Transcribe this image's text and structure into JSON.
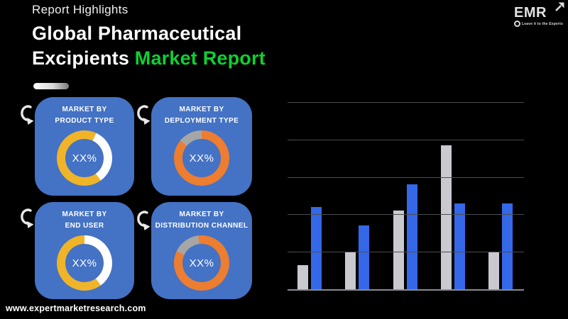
{
  "page": {
    "background": "#000000",
    "accent_green": "#0DD133",
    "card_blue": "#4472C4"
  },
  "header": {
    "eyebrow": "Report Highlights",
    "title_line1": "Global Pharmaceutical",
    "title_line2_white": "Excipients",
    "title_line2_green": "Market Report"
  },
  "logo": {
    "name": "EMR",
    "tagline": "Leave it to the Experts"
  },
  "cards": [
    {
      "line1": "MARKET BY",
      "line2": "PRODUCT TYPE",
      "center_label": "XX%"
    },
    {
      "line1": "MARKET BY",
      "line2": "DEPLOYMENT TYPE",
      "center_label": "XX%"
    },
    {
      "line1": "MARKET BY",
      "line2": "END USER",
      "center_label": "XX%"
    },
    {
      "line1": "MARKET BY",
      "line2": "DISTRIBUTION CHANNEL",
      "center_label": "XX%"
    }
  ],
  "chart_data": [
    {
      "type": "bar",
      "title": "",
      "xlabel": "",
      "ylabel": "",
      "categories": [
        "",
        "",
        "",
        "",
        ""
      ],
      "series": [
        {
          "name": "gray",
          "color": "#C9CACF",
          "values": [
            0.65,
            1.0,
            2.1,
            3.85,
            1.0
          ]
        },
        {
          "name": "blue",
          "color": "#3468E8",
          "values": [
            2.2,
            1.7,
            2.8,
            2.3,
            2.3
          ]
        }
      ],
      "ylim": [
        0,
        5
      ],
      "gridlines": 6,
      "axis_labels_visible": false,
      "legend": "none"
    },
    {
      "type": "donut",
      "title": "MARKET BY PRODUCT TYPE",
      "center_label": "XX%",
      "segments": [
        {
          "color": "#F0B429",
          "pct": 7
        },
        {
          "color": "#FFFFFF",
          "pct": 33
        },
        {
          "color": "#F0B429",
          "pct": 60
        }
      ]
    },
    {
      "type": "donut",
      "title": "MARKET BY DEPLOYMENT TYPE",
      "center_label": "XX%",
      "segments": [
        {
          "color": "#ED7D31",
          "pct": 86
        },
        {
          "color": "#A6A6A6",
          "pct": 14
        }
      ]
    },
    {
      "type": "donut",
      "title": "MARKET BY END USER",
      "center_label": "XX%",
      "segments": [
        {
          "color": "#FFFFFF",
          "pct": 40
        },
        {
          "color": "#F0B429",
          "pct": 60
        }
      ]
    },
    {
      "type": "donut",
      "title": "MARKET BY DISTRIBUTION CHANNEL",
      "center_label": "XX%",
      "segments": [
        {
          "color": "#ED7D31",
          "pct": 82
        },
        {
          "color": "#A6A6A6",
          "pct": 16
        },
        {
          "color": "#ED7D31",
          "pct": 2
        }
      ]
    }
  ],
  "footer": {
    "website": "www.expertmarketresearch.com"
  }
}
